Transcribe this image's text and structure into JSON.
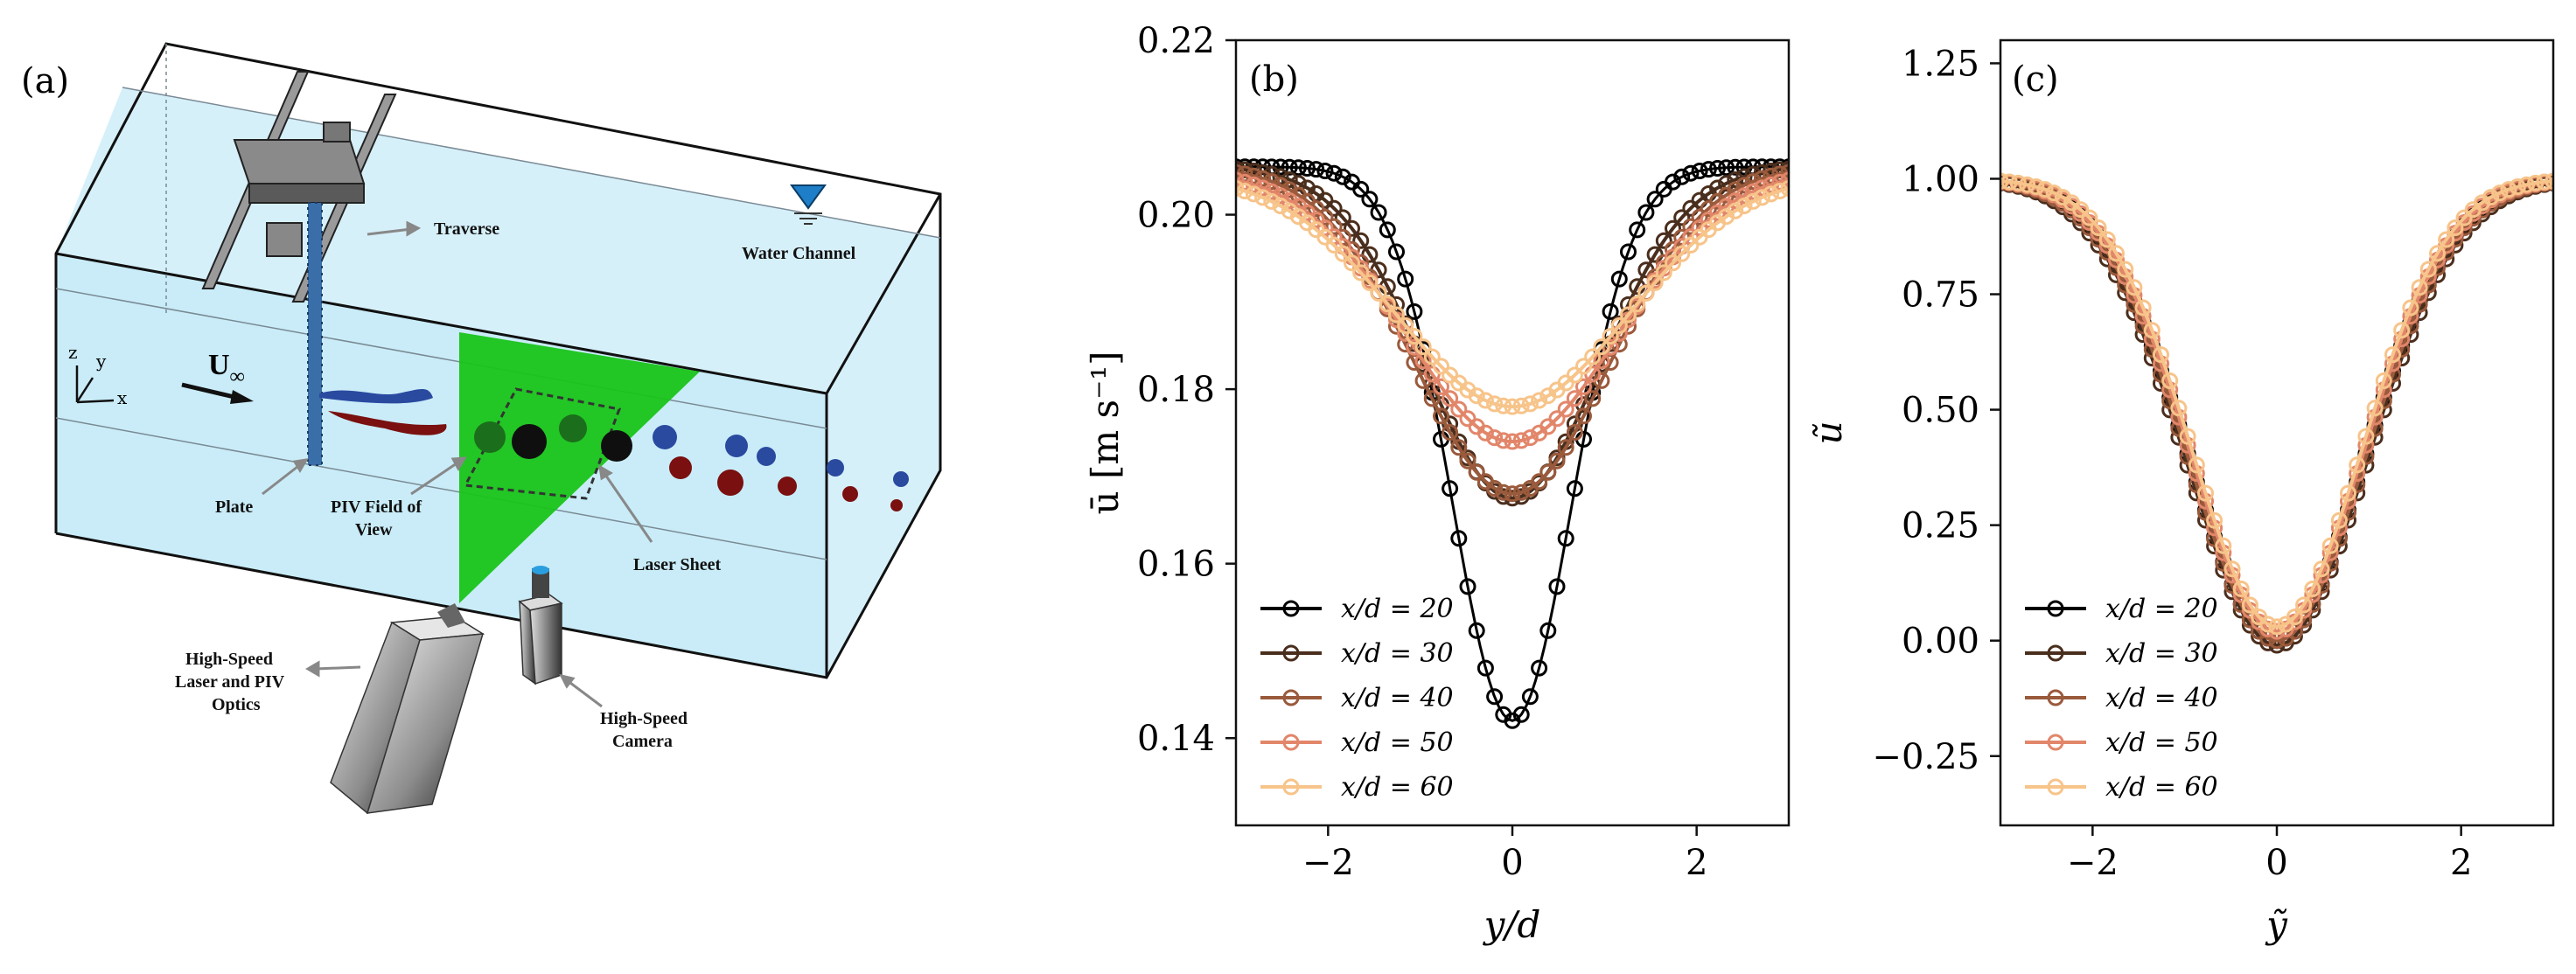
{
  "panel_a": {
    "label": "(a)",
    "callouts": {
      "traverse": "Traverse",
      "water_channel": "Water Channel",
      "plate": "Plate",
      "piv_fov_line1": "PIV Field of",
      "piv_fov_line2": "View",
      "laser_sheet": "Laser Sheet",
      "laser_line1": "High-Speed",
      "laser_line2": "Laser and PIV",
      "laser_line3": "Optics",
      "camera_line1": "High-Speed",
      "camera_line2": "Camera"
    },
    "flow_label": "U",
    "flow_sub": "∞",
    "axes": {
      "z": "z",
      "y": "y",
      "x": "x"
    }
  },
  "legend_entries": [
    "x/d = 20",
    "x/d = 30",
    "x/d = 40",
    "x/d = 50",
    "x/d = 60"
  ],
  "series_colors": [
    "#000000",
    "#4a2e1d",
    "#9a5a3c",
    "#e2866a",
    "#f7c48a"
  ],
  "chart_data": [
    {
      "type": "line",
      "label": "(b)",
      "xlabel": "y/d",
      "ylabel": "ū [m s⁻¹]",
      "xlim": [
        -3,
        3
      ],
      "ylim": [
        0.13,
        0.22
      ],
      "xticks": [
        -2,
        0,
        2
      ],
      "yticks": [
        0.14,
        0.16,
        0.18,
        0.2,
        0.22
      ],
      "xtick_labels": [
        "−2",
        "0",
        "2"
      ],
      "ytick_labels": [
        "0.14",
        "0.16",
        "0.18",
        "0.20",
        "0.22"
      ],
      "series": [
        {
          "name": "x/d = 20",
          "baseline": 0.2055,
          "minimum": 0.142,
          "width": 0.65
        },
        {
          "name": "x/d = 30",
          "baseline": 0.2055,
          "minimum": 0.1675,
          "width": 0.95
        },
        {
          "name": "x/d = 40",
          "baseline": 0.2055,
          "minimum": 0.168,
          "width": 1.05
        },
        {
          "name": "x/d = 50",
          "baseline": 0.205,
          "minimum": 0.174,
          "width": 1.15
        },
        {
          "name": "x/d = 60",
          "baseline": 0.2045,
          "minimum": 0.178,
          "width": 1.25
        }
      ]
    },
    {
      "type": "line",
      "label": "(c)",
      "xlabel": "ỹ",
      "ylabel": "ũ",
      "xlim": [
        -3,
        3
      ],
      "ylim": [
        -0.4,
        1.3
      ],
      "xticks": [
        -2,
        0,
        2
      ],
      "yticks": [
        -0.25,
        0.0,
        0.25,
        0.5,
        0.75,
        1.0,
        1.25
      ],
      "xtick_labels": [
        "−2",
        "0",
        "2"
      ],
      "ytick_labels": [
        "−0.25",
        "0.00",
        "0.25",
        "0.50",
        "0.75",
        "1.00",
        "1.25"
      ],
      "series": [
        {
          "name": "x/d = 20",
          "baseline": 1.0,
          "minimum": 0.0,
          "width": 0.95
        },
        {
          "name": "x/d = 30",
          "baseline": 1.0,
          "minimum": -0.01,
          "width": 0.98
        },
        {
          "name": "x/d = 40",
          "baseline": 1.0,
          "minimum": 0.0,
          "width": 0.96
        },
        {
          "name": "x/d = 50",
          "baseline": 1.0,
          "minimum": 0.02,
          "width": 0.94
        },
        {
          "name": "x/d = 60",
          "baseline": 1.0,
          "minimum": 0.03,
          "width": 0.92
        }
      ]
    }
  ]
}
